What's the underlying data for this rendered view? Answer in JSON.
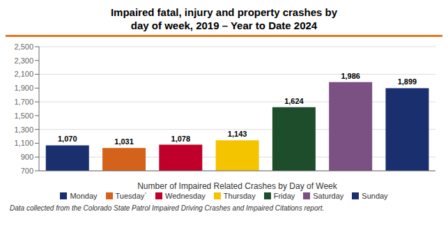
{
  "chart_data": {
    "type": "bar",
    "title": "Impaired fatal, injury and property crashes by\nday of week, 2019 – Year to Date 2024",
    "xlabel": "Number of Impaired Related Crashes by Day of Week",
    "categories": [
      "Monday",
      "Tuesday`",
      "Wednesday",
      "Thursday",
      "Friday",
      "Saturday",
      "Sunday"
    ],
    "values": [
      1070,
      1031,
      1078,
      1143,
      1624,
      1986,
      1899
    ],
    "value_labels": [
      "1,070",
      "1,031",
      "1,078",
      "1,143",
      "1,624",
      "1,986",
      "1,899"
    ],
    "data_labels": true,
    "colors": [
      "#1a2f6e",
      "#d4621a",
      "#c0002a",
      "#f5c400",
      "#1e4d2b",
      "#7b5082",
      "#1a2f6e"
    ],
    "ylim": [
      700,
      2500
    ],
    "yticks": [
      700,
      900,
      {
        "value": 1100,
        "label": "1,100"
      },
      {
        "value": 1300,
        "label": "1,300"
      },
      {
        "value": 1500,
        "label": "1,500"
      },
      {
        "value": 1700,
        "label": "1,700"
      },
      {
        "value": 1900,
        "label": "1,900"
      },
      {
        "value": 2100,
        "label": "2,100"
      },
      {
        "value": 2300,
        "label": "2,300"
      },
      {
        "value": 2500,
        "label": "2,500"
      }
    ],
    "grid": true,
    "legend": "bottom",
    "tick_labels": "y",
    "annotations": [
      "Data collected from the Colorado State Patrol Impaired Driving Crashes and Impaired Citations report."
    ]
  }
}
